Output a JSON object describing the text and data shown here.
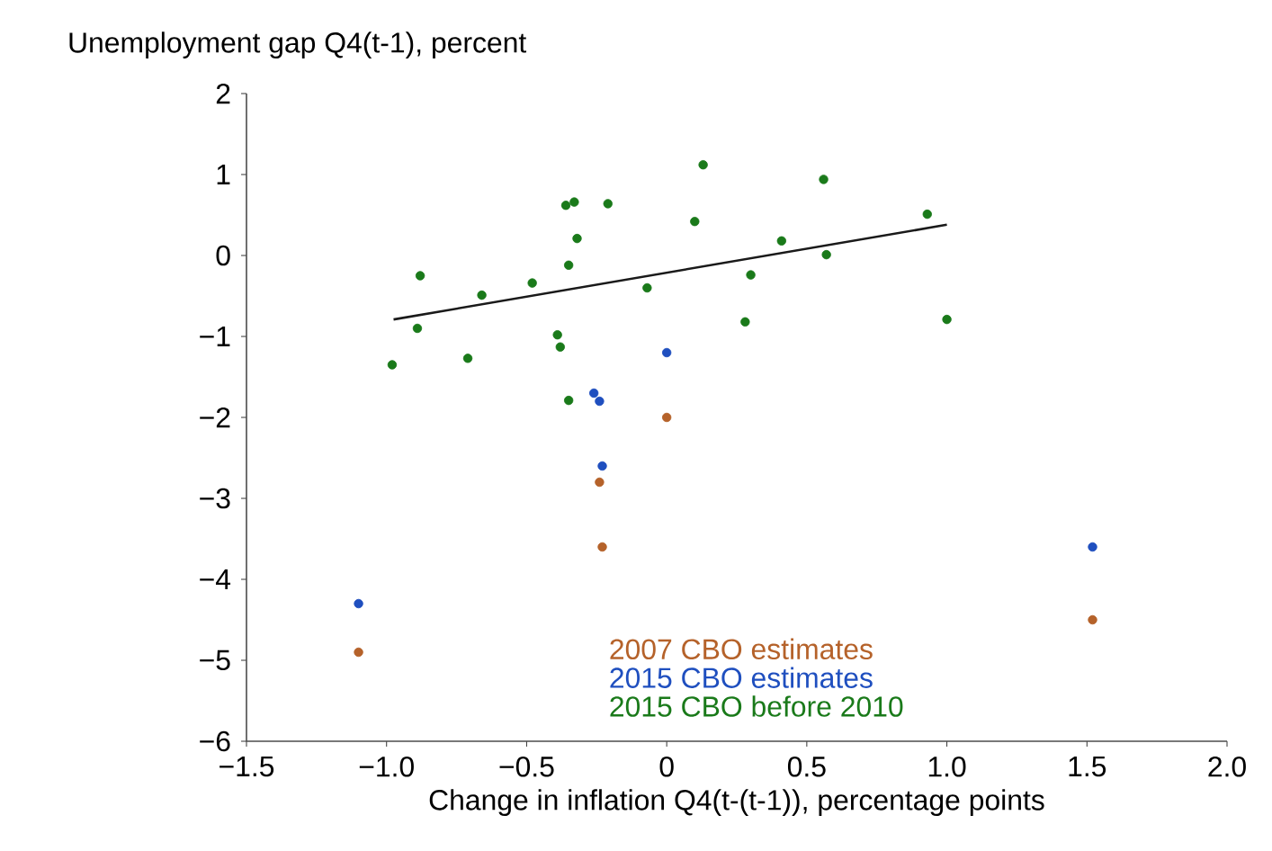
{
  "chart_data": {
    "type": "scatter",
    "ylabel": "Unemployment gap Q4(t-1), percent",
    "xlabel": "Change in inflation Q4(t-(t-1)), percentage points",
    "xlim": [
      -1.5,
      2.0
    ],
    "ylim": [
      -6,
      2
    ],
    "xticks": [
      {
        "value": -1.5,
        "label": "−1.5"
      },
      {
        "value": -1.0,
        "label": "−1.0"
      },
      {
        "value": -0.5,
        "label": "−0.5"
      },
      {
        "value": 0,
        "label": "0"
      },
      {
        "value": 0.5,
        "label": "0.5"
      },
      {
        "value": 1.0,
        "label": "1.0"
      },
      {
        "value": 1.5,
        "label": "1.5"
      },
      {
        "value": 2.0,
        "label": "2.0"
      }
    ],
    "yticks": [
      {
        "value": -6,
        "label": "−6"
      },
      {
        "value": -5,
        "label": "−5"
      },
      {
        "value": -4,
        "label": "−4"
      },
      {
        "value": -3,
        "label": "−3"
      },
      {
        "value": -2,
        "label": "−2"
      },
      {
        "value": -1,
        "label": "−1"
      },
      {
        "value": 0,
        "label": "0"
      },
      {
        "value": 1,
        "label": "1"
      },
      {
        "value": 2,
        "label": "2"
      }
    ],
    "grid": false,
    "legend": "bottom",
    "series": [
      {
        "name": "2007 CBO estimates",
        "marker": "circle",
        "color": "#b5622a",
        "x": [
          0.0,
          -0.24,
          -0.23,
          -1.1,
          1.52
        ],
        "values": [
          -2.0,
          -2.8,
          -3.6,
          -4.9,
          -4.5
        ]
      },
      {
        "name": "2015 CBO estimates",
        "marker": "circle",
        "color": "#1f4fbf",
        "x": [
          0.0,
          -0.26,
          -0.24,
          -0.23,
          -1.1,
          1.52
        ],
        "values": [
          -1.2,
          -1.7,
          -1.8,
          -2.6,
          -4.3,
          -3.6
        ]
      },
      {
        "name": "2015 CBO before 2010",
        "marker": "circle",
        "color": "#1a7a1a",
        "x": [
          -0.98,
          -0.88,
          -0.89,
          -0.71,
          -0.66,
          -0.48,
          -0.36,
          -0.33,
          -0.32,
          -0.35,
          -0.39,
          -0.38,
          -0.35,
          -0.21,
          -0.07,
          0.13,
          0.1,
          0.56,
          0.93,
          0.41,
          0.57,
          0.3,
          0.28,
          1.0
        ],
        "values": [
          -1.35,
          -0.25,
          -0.9,
          -1.27,
          -0.49,
          -0.34,
          0.62,
          0.66,
          0.21,
          -0.12,
          -0.98,
          -1.13,
          -1.79,
          0.64,
          -0.4,
          1.12,
          0.42,
          0.94,
          0.51,
          0.18,
          0.01,
          -0.24,
          -0.82,
          -0.79
        ]
      },
      {
        "type": "line",
        "marker": "none",
        "color": "#1a1a1a",
        "x": [
          -0.975,
          1.0
        ],
        "values": [
          -0.79,
          0.38
        ]
      }
    ]
  }
}
